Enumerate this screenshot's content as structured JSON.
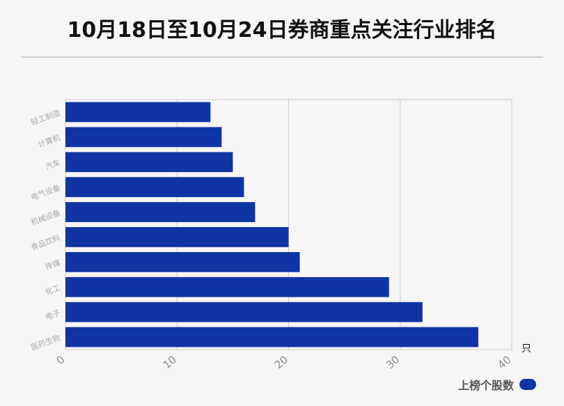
{
  "title": "10月18日至10月24日券商重点关注行业排名",
  "legend": {
    "label": "上榜个股数"
  },
  "colors": {
    "bar": "#0e35a3",
    "grid": "#cccccc",
    "background": "#f8f5f7"
  },
  "chart_data": {
    "type": "bar",
    "orientation": "horizontal",
    "title": "10月18日至10月24日券商重点关注行业排名",
    "categories": [
      "轻工制造",
      "计算机",
      "汽车",
      "电气设备",
      "机械设备",
      "食品饮料",
      "传媒",
      "化工",
      "电子",
      "医药生物"
    ],
    "series": [
      {
        "name": "上榜个股数",
        "values": [
          13,
          14,
          15,
          16,
          17,
          20,
          21,
          29,
          32,
          37
        ]
      }
    ],
    "xlim": [
      0,
      40
    ],
    "xticks": [
      "0",
      "10",
      "20",
      "30",
      "40"
    ],
    "xunit": "只",
    "grid": true,
    "legend_position": "bottom-right"
  }
}
